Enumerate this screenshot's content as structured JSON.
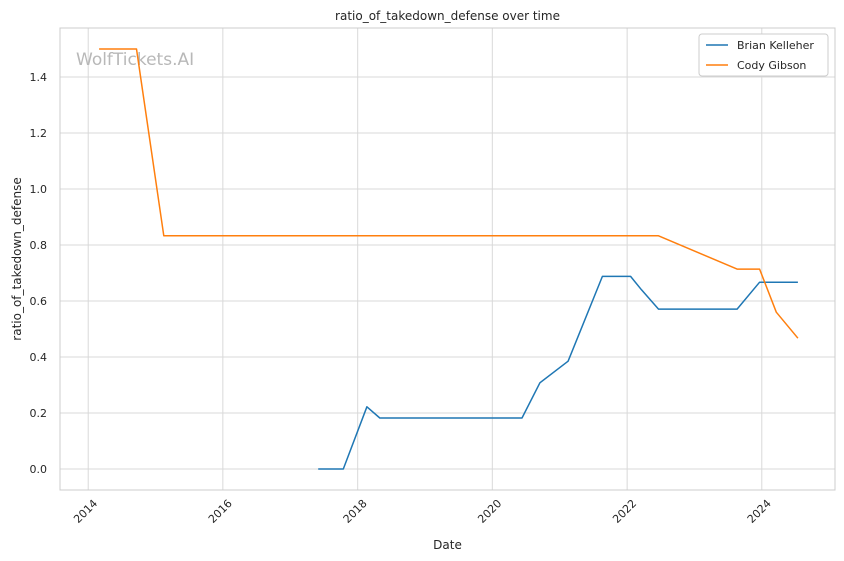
{
  "chart_data": {
    "type": "line",
    "title": "ratio_of_takedown_defense over time",
    "xlabel": "Date",
    "ylabel": "ratio_of_takedown_defense",
    "watermark": "WolfTickets.AI",
    "xlim": [
      "2013-08-01",
      "2025-02-01"
    ],
    "ylim": [
      -0.075,
      1.575
    ],
    "x_ticks": [
      "2014-01-01",
      "2016-01-01",
      "2018-01-01",
      "2020-01-01",
      "2022-01-01",
      "2024-01-01"
    ],
    "x_tick_labels": [
      "2014",
      "2016",
      "2018",
      "2020",
      "2022",
      "2024"
    ],
    "y_ticks": [
      0.0,
      0.2,
      0.4,
      0.6,
      0.8,
      1.0,
      1.2,
      1.4
    ],
    "y_tick_labels": [
      "0.0",
      "0.2",
      "0.4",
      "0.6",
      "0.8",
      "1.0",
      "1.2",
      "1.4"
    ],
    "grid": true,
    "legend_position": "top-right",
    "series": [
      {
        "name": "Brian Kelleher",
        "color": "#1f77b4",
        "points": [
          {
            "x": "2017-06-01",
            "y": 0.0
          },
          {
            "x": "2017-10-15",
            "y": 0.0
          },
          {
            "x": "2018-02-20",
            "y": 0.222
          },
          {
            "x": "2018-05-01",
            "y": 0.182
          },
          {
            "x": "2020-06-10",
            "y": 0.182
          },
          {
            "x": "2020-09-15",
            "y": 0.308
          },
          {
            "x": "2021-02-15",
            "y": 0.385
          },
          {
            "x": "2021-08-20",
            "y": 0.688
          },
          {
            "x": "2022-01-20",
            "y": 0.688
          },
          {
            "x": "2022-03-20",
            "y": 0.64
          },
          {
            "x": "2022-06-20",
            "y": 0.571
          },
          {
            "x": "2023-08-20",
            "y": 0.571
          },
          {
            "x": "2023-12-20",
            "y": 0.667
          },
          {
            "x": "2024-07-15",
            "y": 0.667
          }
        ]
      },
      {
        "name": "Cody Gibson",
        "color": "#ff7f0e",
        "points": [
          {
            "x": "2014-03-01",
            "y": 1.5
          },
          {
            "x": "2014-09-20",
            "y": 1.5
          },
          {
            "x": "2015-02-15",
            "y": 0.833
          },
          {
            "x": "2022-06-20",
            "y": 0.833
          },
          {
            "x": "2023-08-20",
            "y": 0.714
          },
          {
            "x": "2023-12-20",
            "y": 0.714
          },
          {
            "x": "2024-03-20",
            "y": 0.56
          },
          {
            "x": "2024-07-15",
            "y": 0.467
          }
        ]
      }
    ]
  }
}
